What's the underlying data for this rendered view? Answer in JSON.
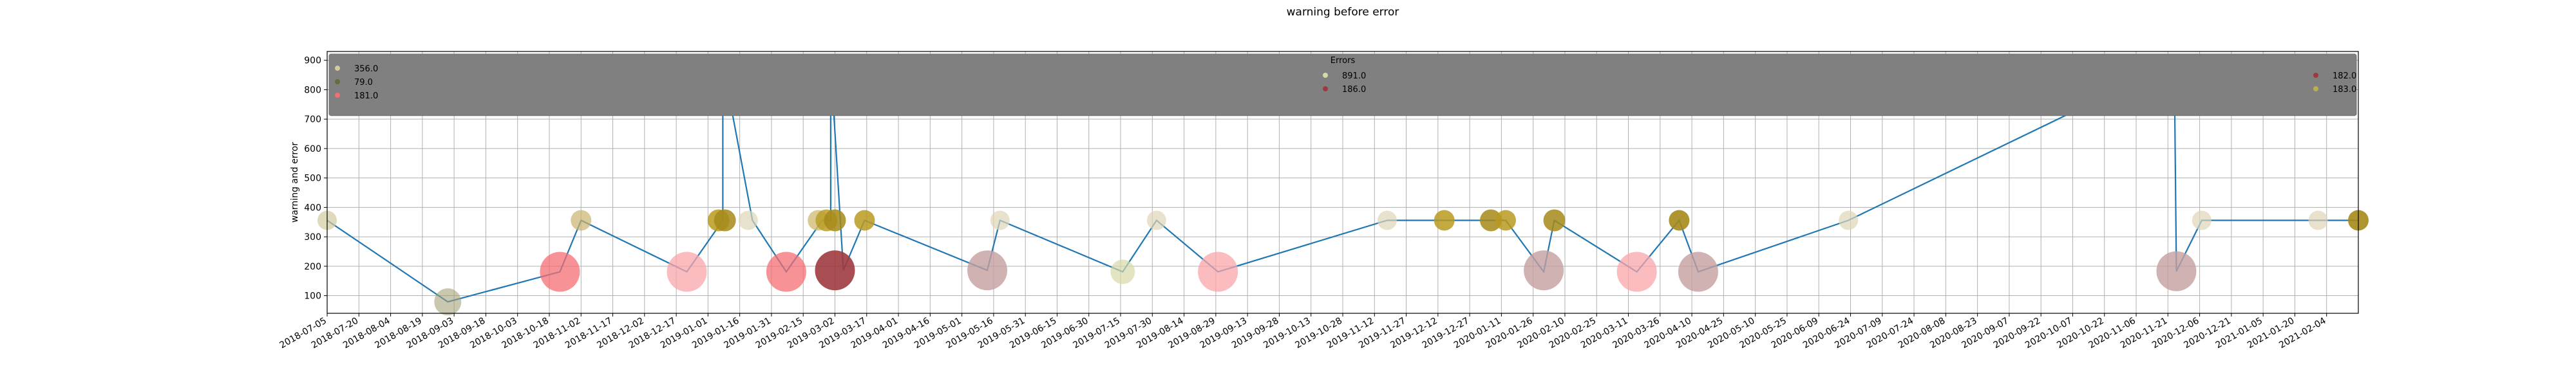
{
  "chart_data": {
    "type": "scatter",
    "title": "warning before error",
    "ylabel": "warning and error",
    "xlabel": "",
    "ylim": [
      40,
      930
    ],
    "yticks": [
      100,
      200,
      300,
      400,
      500,
      600,
      700,
      800,
      900
    ],
    "xlim": [
      "2018-07-05",
      "2021-02-19"
    ],
    "grid": true,
    "x_ticks_start": "2018-07-05",
    "x_tick_step_days": 15,
    "x_ticks": [
      "2018-07-05",
      "2018-07-20",
      "2018-08-04",
      "2018-08-19",
      "2018-09-03",
      "2018-09-18",
      "2018-10-03",
      "2018-10-18",
      "2018-11-02",
      "2018-11-17",
      "2018-12-02",
      "2018-12-17",
      "2019-01-01",
      "2019-01-16",
      "2019-01-31",
      "2019-02-15",
      "2019-03-02",
      "2019-03-17",
      "2019-04-01",
      "2019-04-16",
      "2019-05-01",
      "2019-05-16",
      "2019-05-31",
      "2019-06-15",
      "2019-06-30",
      "2019-07-15",
      "2019-07-30",
      "2019-08-14",
      "2019-08-29",
      "2019-09-13",
      "2019-09-28",
      "2019-10-13",
      "2019-10-28",
      "2019-11-12",
      "2019-11-27",
      "2019-12-12",
      "2019-12-27",
      "2020-01-11",
      "2020-01-26",
      "2020-02-10",
      "2020-02-25",
      "2020-03-11",
      "2020-03-26",
      "2020-04-10",
      "2020-04-25",
      "2020-05-10",
      "2020-05-25",
      "2020-06-09",
      "2020-06-24",
      "2020-07-09",
      "2020-07-24",
      "2020-08-08",
      "2020-08-23",
      "2020-09-07",
      "2020-09-22",
      "2020-10-07",
      "2020-10-22",
      "2020-11-06",
      "2020-11-21",
      "2020-12-06",
      "2020-12-21",
      "2021-01-05",
      "2021-01-20",
      "2021-02-04"
    ],
    "line": {
      "color": "#1f77b4",
      "x": [
        "2018-07-05",
        "2018-08-31",
        "2018-10-23",
        "2018-11-02",
        "2018-12-22",
        "2019-01-08",
        "2019-01-08",
        "2019-01-22",
        "2019-02-07",
        "2019-02-24",
        "2019-02-28",
        "2019-02-28",
        "2019-03-06",
        "2019-03-16",
        "2019-05-13",
        "2019-05-19",
        "2019-07-16",
        "2019-08-01",
        "2019-08-30",
        "2019-11-18",
        "2019-12-15",
        "2020-01-08",
        "2020-01-13",
        "2020-01-31",
        "2020-02-05",
        "2020-03-15",
        "2020-04-04",
        "2020-04-13",
        "2020-06-23",
        "2020-11-24",
        "2020-11-25",
        "2020-12-07",
        "2021-02-19"
      ],
      "y": [
        356,
        79,
        181,
        356,
        181,
        356,
        891,
        356,
        181,
        356,
        356,
        891,
        186,
        356,
        186,
        356,
        181,
        356,
        181,
        356,
        356,
        356,
        356,
        181,
        356,
        181,
        356,
        181,
        356,
        891,
        183,
        356,
        356
      ]
    },
    "bubbles": [
      {
        "x": "2018-07-05",
        "y": 356,
        "label": "356.0",
        "color": "#d3caa0",
        "alpha": 0.7,
        "r": 15
      },
      {
        "x": "2018-08-31",
        "y": 79,
        "label": "79.0",
        "color": "#a6a27a",
        "alpha": 0.6,
        "r": 21
      },
      {
        "x": "2018-10-23",
        "y": 181,
        "label": "181.0",
        "color": "#f46d73",
        "alpha": 0.75,
        "r": 31
      },
      {
        "x": "2018-11-02",
        "y": 356,
        "label": "356.0",
        "color": "#cbb36e",
        "alpha": 0.7,
        "r": 16
      },
      {
        "x": "2018-12-22",
        "y": 181,
        "label": "181.0",
        "color": "#f9a5a9",
        "alpha": 0.75,
        "r": 31
      },
      {
        "x": "2019-01-06",
        "y": 356,
        "label": "356.0",
        "color": "#b89a1f",
        "alpha": 0.85,
        "r": 17
      },
      {
        "x": "2019-01-09",
        "y": 356,
        "label": "356.0",
        "color": "#a68a1a",
        "alpha": 0.85,
        "r": 17
      },
      {
        "x": "2019-01-08",
        "y": 891,
        "label": "891.0",
        "color": "#b7b04e",
        "alpha": 0.8,
        "r": 3
      },
      {
        "x": "2019-01-20",
        "y": 356,
        "label": "356.0",
        "color": "#ded6b8",
        "alpha": 0.7,
        "r": 15
      },
      {
        "x": "2019-02-07",
        "y": 181,
        "label": "181.0",
        "color": "#f46d73",
        "alpha": 0.75,
        "r": 31
      },
      {
        "x": "2019-02-22",
        "y": 356,
        "label": "356.0",
        "color": "#d2bd75",
        "alpha": 0.8,
        "r": 16
      },
      {
        "x": "2019-02-26",
        "y": 356,
        "label": "356.0",
        "color": "#b89a1f",
        "alpha": 0.8,
        "r": 17
      },
      {
        "x": "2019-03-02",
        "y": 356,
        "label": "356.0",
        "color": "#a68a1a",
        "alpha": 0.85,
        "r": 17
      },
      {
        "x": "2019-02-28",
        "y": 891,
        "label": "891.0",
        "color": "#b7b04e",
        "alpha": 0.8,
        "r": 3
      },
      {
        "x": "2019-03-02",
        "y": 186,
        "label": "186.0",
        "color": "#9e3a3f",
        "alpha": 0.9,
        "r": 31
      },
      {
        "x": "2019-03-16",
        "y": 356,
        "label": "356.0",
        "color": "#b89a1f",
        "alpha": 0.85,
        "r": 16
      },
      {
        "x": "2019-05-13",
        "y": 186,
        "label": "186.0",
        "color": "#c49fa0",
        "alpha": 0.8,
        "r": 31
      },
      {
        "x": "2019-05-19",
        "y": 356,
        "label": "356.0",
        "color": "#ded6b8",
        "alpha": 0.7,
        "r": 15
      },
      {
        "x": "2019-07-16",
        "y": 181,
        "label": "181.0",
        "color": "#d6d8a8",
        "alpha": 0.7,
        "r": 19
      },
      {
        "x": "2019-08-01",
        "y": 356,
        "label": "356.0",
        "color": "#ded6b8",
        "alpha": 0.7,
        "r": 15
      },
      {
        "x": "2019-08-30",
        "y": 181,
        "label": "181.0",
        "color": "#f9a5a9",
        "alpha": 0.75,
        "r": 31
      },
      {
        "x": "2019-11-18",
        "y": 356,
        "label": "356.0",
        "color": "#ded6b8",
        "alpha": 0.7,
        "r": 15
      },
      {
        "x": "2019-12-15",
        "y": 356,
        "label": "356.0",
        "color": "#b89a1f",
        "alpha": 0.85,
        "r": 16
      },
      {
        "x": "2020-01-06",
        "y": 356,
        "label": "356.0",
        "color": "#a68a1a",
        "alpha": 0.85,
        "r": 17
      },
      {
        "x": "2020-01-13",
        "y": 356,
        "label": "356.0",
        "color": "#b89a1f",
        "alpha": 0.85,
        "r": 16
      },
      {
        "x": "2020-01-31",
        "y": 186,
        "label": "186.0",
        "color": "#c49fa0",
        "alpha": 0.8,
        "r": 31
      },
      {
        "x": "2020-02-05",
        "y": 356,
        "label": "356.0",
        "color": "#a68a1a",
        "alpha": 0.85,
        "r": 17
      },
      {
        "x": "2020-03-15",
        "y": 181,
        "label": "181.0",
        "color": "#f9a5a9",
        "alpha": 0.75,
        "r": 31
      },
      {
        "x": "2020-04-04",
        "y": 356,
        "label": "356.0",
        "color": "#a68a1a",
        "alpha": 0.9,
        "r": 16
      },
      {
        "x": "2020-04-13",
        "y": 181,
        "label": "181.0",
        "color": "#c49fa0",
        "alpha": 0.8,
        "r": 31
      },
      {
        "x": "2020-06-23",
        "y": 356,
        "label": "356.0",
        "color": "#ded6b8",
        "alpha": 0.7,
        "r": 15
      },
      {
        "x": "2020-11-24",
        "y": 891,
        "label": "891.0",
        "color": "#b7b04e",
        "alpha": 0.8,
        "r": 3
      },
      {
        "x": "2020-11-25",
        "y": 183,
        "label": "183.0",
        "color": "#c49fa0",
        "alpha": 0.8,
        "r": 31
      },
      {
        "x": "2020-12-07",
        "y": 356,
        "label": "356.0",
        "color": "#ded6b8",
        "alpha": 0.7,
        "r": 15
      },
      {
        "x": "2021-01-31",
        "y": 356,
        "label": "356.0",
        "color": "#ded6b8",
        "alpha": 0.7,
        "r": 15
      },
      {
        "x": "2021-02-19",
        "y": 356,
        "label": "356.0",
        "color": "#a68a1a",
        "alpha": 0.9,
        "r": 16
      }
    ],
    "legend": {
      "title": "Errors",
      "placement": "top, spanning full width",
      "facecolor": "#808080",
      "groups": [
        [
          {
            "label": "356.0",
            "color": "#d3caa0"
          },
          {
            "label": "79.0",
            "color": "#6b6a3a"
          },
          {
            "label": "181.0",
            "color": "#f46d73"
          }
        ],
        [
          {
            "label": "891.0",
            "color": "#d6d8a8"
          },
          {
            "label": "186.0",
            "color": "#9e3a3f"
          }
        ],
        [
          {
            "label": "182.0",
            "color": "#9e3a3f"
          },
          {
            "label": "183.0",
            "color": "#b7b04e"
          }
        ]
      ]
    }
  }
}
